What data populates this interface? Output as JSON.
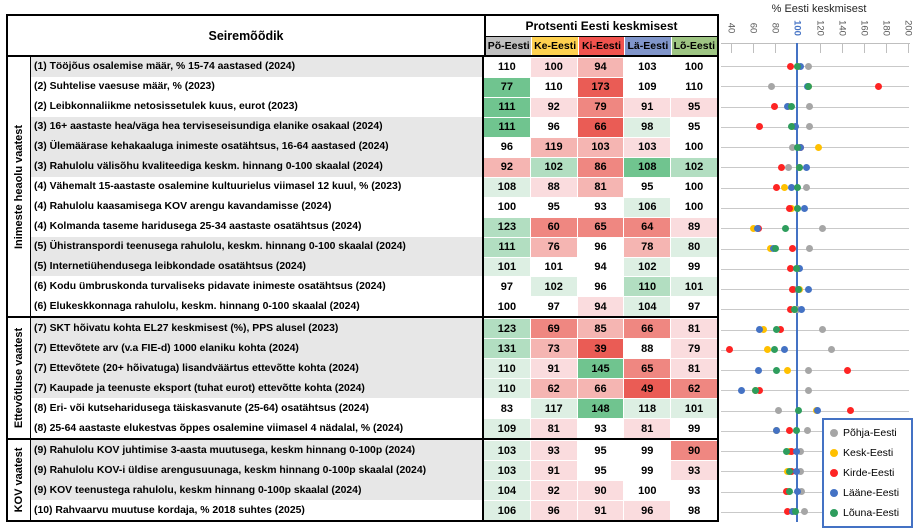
{
  "table": {
    "header": {
      "metric": "Seiremõõdik",
      "values_title": "Protsenti Eesti keskmisest"
    },
    "regions": [
      {
        "short": "Põ-Eesti",
        "header_color": "#bfbfbf"
      },
      {
        "short": "Ke-Eesti",
        "header_color": "#fed14f"
      },
      {
        "short": "Ki-Eesti",
        "header_color": "#f1534e"
      },
      {
        "short": "Lä-Eesti",
        "header_color": "#8095ca"
      },
      {
        "short": "Lõ-Eesti",
        "header_color": "#9ec583"
      }
    ],
    "tone_colors": {
      "w": "#ffffff",
      "r1": "#fadcde",
      "r2": "#f5b5b2",
      "r3": "#ef8781",
      "r4": "#ea5c55",
      "g1": "#ddefe3",
      "g2": "#b2dec1",
      "g3": "#70c48f"
    },
    "sections": [
      {
        "label": "Inimeste heaolu vaatest",
        "rows": [
          {
            "label": "(1) Tööjõus osalemise määr, % 15-74 aastased (2024)",
            "stripe": true,
            "values": [
              110,
              100,
              94,
              103,
              100
            ],
            "tones": [
              "w",
              "r1",
              "r2",
              "w",
              "w"
            ]
          },
          {
            "label": "(2) Suhtelise vaesuse määr, % (2023)",
            "stripe": false,
            "values": [
              77,
              110,
              173,
              109,
              110
            ],
            "tones": [
              "g3",
              "w",
              "r4",
              "w",
              "w"
            ]
          },
          {
            "label": "(2) Leibkonnaliikme netosissetulek kuus, eurot (2023)",
            "stripe": false,
            "values": [
              111,
              92,
              79,
              91,
              95
            ],
            "tones": [
              "g3",
              "r1",
              "r3",
              "r1",
              "r1"
            ]
          },
          {
            "label": "(3) 16+ aastaste hea/väga hea terviseseisundiga elanike osakaal (2024)",
            "stripe": true,
            "values": [
              111,
              96,
              66,
              98,
              95
            ],
            "tones": [
              "g3",
              "w",
              "r4",
              "g1",
              "w"
            ]
          },
          {
            "label": "(3) Ülemäärase kehakaaluga inimeste osatähtsus, 16-64 aastased (2024)",
            "stripe": true,
            "values": [
              96,
              119,
              103,
              103,
              100
            ],
            "tones": [
              "w",
              "r2",
              "r2",
              "r1",
              "w"
            ]
          },
          {
            "label": "(3) Rahulolu välisõhu kvaliteediga keskm. hinnang 0-100 skaalal (2024)",
            "stripe": true,
            "values": [
              92,
              102,
              86,
              108,
              102
            ],
            "tones": [
              "r2",
              "g2",
              "r3",
              "g3",
              "g2"
            ]
          },
          {
            "label": "(4) Vähemalt 15-aastaste osalemine kultuurielus viimasel 12 kuul, % (2023)",
            "stripe": false,
            "values": [
              108,
              88,
              81,
              95,
              100
            ],
            "tones": [
              "g1",
              "r1",
              "r2",
              "w",
              "w"
            ]
          },
          {
            "label": "(4) Rahulolu kaasamisega KOV arengu kavandamisse (2024)",
            "stripe": false,
            "values": [
              100,
              95,
              93,
              106,
              100
            ],
            "tones": [
              "w",
              "w",
              "w",
              "g1",
              "w"
            ]
          },
          {
            "label": "(4) Kolmanda taseme haridusega 25-34 aastaste osatähtsus (2024)",
            "stripe": false,
            "values": [
              123,
              60,
              65,
              64,
              89
            ],
            "tones": [
              "g2",
              "r3",
              "r3",
              "r3",
              "r1"
            ]
          },
          {
            "label": "(5) Ühistranspordi teenusega rahulolu, keskm. hinnang 0-100 skaalal (2024)",
            "stripe": true,
            "values": [
              111,
              76,
              96,
              78,
              80
            ],
            "tones": [
              "g2",
              "r2",
              "w",
              "r2",
              "g1"
            ]
          },
          {
            "label": "(5) Internetiühendusega leibkondade osatähtsus (2024)",
            "stripe": true,
            "values": [
              101,
              101,
              94,
              102,
              99
            ],
            "tones": [
              "g1",
              "w",
              "w",
              "g1",
              "w"
            ]
          },
          {
            "label": "(6) Kodu ümbruskonda turvaliseks pidavate inimeste osatähtsus (2024)",
            "stripe": false,
            "values": [
              97,
              102,
              96,
              110,
              101
            ],
            "tones": [
              "w",
              "g1",
              "w",
              "g2",
              "g1"
            ]
          },
          {
            "label": "(6) Elukeskkonnaga rahulolu, keskm. hinnang 0-100 skaalal (2024)",
            "stripe": false,
            "values": [
              100,
              97,
              94,
              104,
              97
            ],
            "tones": [
              "w",
              "w",
              "r1",
              "g1",
              "w"
            ]
          }
        ]
      },
      {
        "label": "Ettevõtluse vaatest",
        "rows": [
          {
            "label": "(7) SKT hõivatu kohta EL27 keskmisest (%), PPS alusel (2023)",
            "stripe": true,
            "values": [
              123,
              69,
              85,
              66,
              81
            ],
            "tones": [
              "g2",
              "r3",
              "r2",
              "r3",
              "r1"
            ]
          },
          {
            "label": "(7) Ettevõtete arv (v.a FIE-d) 1000 elaniku kohta (2024)",
            "stripe": true,
            "values": [
              131,
              73,
              39,
              88,
              79
            ],
            "tones": [
              "g2",
              "r2",
              "r4",
              "w",
              "r1"
            ]
          },
          {
            "label": "(7) Ettevõtete (20+ hõivatuga) lisandväärtus ettevõtte kohta (2024)",
            "stripe": true,
            "values": [
              110,
              91,
              145,
              65,
              81
            ],
            "tones": [
              "g1",
              "r1",
              "g3",
              "r3",
              "r1"
            ]
          },
          {
            "label": "(7) Kaupade ja teenuste eksport (tuhat eurot) ettevõtte kohta (2024)",
            "stripe": true,
            "values": [
              110,
              62,
              66,
              49,
              62
            ],
            "tones": [
              "g1",
              "r2",
              "r2",
              "r4",
              "r3"
            ]
          },
          {
            "label": "(8) Eri- või kutseharidusega täiskasvanute (25-64) osatähtsus (2024)",
            "stripe": false,
            "values": [
              83,
              117,
              148,
              118,
              101
            ],
            "tones": [
              "w",
              "g1",
              "g3",
              "g1",
              "g1"
            ]
          },
          {
            "label": "(8) 25-64 aastaste elukestvas õppes osalemine viimasel 4 nädalal, % (2024)",
            "stripe": false,
            "values": [
              109,
              81,
              93,
              81,
              99
            ],
            "tones": [
              "g1",
              "r1",
              "w",
              "r1",
              "w"
            ]
          }
        ]
      },
      {
        "label": "KOV vaatest",
        "rows": [
          {
            "label": "(9) Rahulolu KOV juhtimise 3-aasta muutusega, keskm hinnang 0-100p (2024)",
            "stripe": true,
            "values": [
              103,
              93,
              95,
              99,
              90
            ],
            "tones": [
              "g1",
              "r1",
              "w",
              "w",
              "r3"
            ]
          },
          {
            "label": "(9) Rahulolu KOV-i üldise arengusuunaga, keskm hinnang 0-100p skaalal (2024)",
            "stripe": true,
            "values": [
              103,
              91,
              95,
              99,
              93
            ],
            "tones": [
              "g1",
              "r1",
              "w",
              "w",
              "r1"
            ]
          },
          {
            "label": "(9) KOV teenustega rahulolu, keskm hinnang 0-100p skaalal (2024)",
            "stripe": true,
            "values": [
              104,
              92,
              90,
              100,
              93
            ],
            "tones": [
              "g1",
              "r1",
              "r1",
              "w",
              "w"
            ]
          },
          {
            "label": "(10) Rahvaarvu muutuse kordaja, % 2018 suhtes (2025)",
            "stripe": false,
            "values": [
              106,
              96,
              91,
              96,
              98
            ],
            "tones": [
              "g1",
              "r1",
              "r1",
              "r1",
              "w"
            ]
          }
        ]
      }
    ]
  },
  "chart_data": {
    "type": "scatter",
    "title": "% Eesti keskmisest",
    "xlabel": "",
    "xlim": [
      40,
      200
    ],
    "x_ticks": [
      40,
      60,
      80,
      100,
      120,
      140,
      160,
      180,
      200
    ],
    "reference_line": 100,
    "grid": true,
    "legend_position": "bottom-right",
    "categories": [
      "(1) Tööjõus osalemise määr, % 15-74 aastased (2024)",
      "(2) Suhtelise vaesuse määr, % (2023)",
      "(2) Leibkonnaliikme netosissetulek kuus, eurot (2023)",
      "(3) 16+ aastaste hea/väga hea terviseseisundiga elanike osakaal (2024)",
      "(3) Ülemäärase kehakaaluga inimeste osatähtsus, 16-64 aastased (2024)",
      "(3) Rahulolu välisõhu kvaliteediga keskm. hinnang 0-100 skaalal (2024)",
      "(4) Vähemalt 15-aastaste osalemine kultuurielus viimasel 12 kuul, % (2023)",
      "(4) Rahulolu kaasamisega KOV arengu kavandamisse (2024)",
      "(4) Kolmanda taseme haridusega 25-34 aastaste osatähtsus (2024)",
      "(5) Ühistranspordi teenusega rahulolu, keskm. hinnang 0-100 skaalal (2024)",
      "(5) Internetiühendusega leibkondade osatähtsus (2024)",
      "(6) Kodu ümbruskonda turvaliseks pidavate inimeste osatähtsus (2024)",
      "(6) Elukeskkonnaga rahulolu, keskm. hinnang 0-100 skaalal (2024)",
      "(7) SKT hõivatu kohta EL27 keskmisest (%), PPS alusel (2023)",
      "(7) Ettevõtete arv (v.a FIE-d) 1000 elaniku kohta (2024)",
      "(7) Ettevõtete (20+ hõivatuga) lisandväärtus ettevõtte kohta (2024)",
      "(7) Kaupade ja teenuste eksport (tuhat eurot) ettevõtte kohta (2024)",
      "(8) Eri- või kutseharidusega täiskasvanute (25-64) osatähtsus (2024)",
      "(8) 25-64 aastaste elukestvas õppes osalemine viimasel 4 nädalal, % (2024)",
      "(9) Rahulolu KOV juhtimise 3-aasta muutusega, keskm hinnang 0-100p (2024)",
      "(9) Rahulolu KOV-i üldise arengusuunaga, keskm hinnang 0-100p skaalal (2024)",
      "(9) KOV teenustega rahulolu, keskm hinnang 0-100p skaalal (2024)",
      "(10) Rahvaarvu muutuse kordaja, % 2018 suhtes (2025)"
    ],
    "series": [
      {
        "name": "Põhja-Eesti",
        "color": "#a6a6a6",
        "values": [
          110,
          77,
          111,
          111,
          96,
          92,
          108,
          100,
          123,
          111,
          101,
          97,
          100,
          123,
          131,
          110,
          110,
          83,
          109,
          103,
          103,
          104,
          106
        ]
      },
      {
        "name": "Kesk-Eesti",
        "color": "#ffc000",
        "values": [
          100,
          110,
          92,
          96,
          119,
          102,
          88,
          95,
          60,
          76,
          101,
          102,
          97,
          69,
          73,
          91,
          62,
          117,
          81,
          93,
          91,
          92,
          96
        ]
      },
      {
        "name": "Kirde-Eesti",
        "color": "#fe2423",
        "values": [
          94,
          173,
          79,
          66,
          103,
          86,
          81,
          93,
          65,
          96,
          94,
          96,
          94,
          85,
          39,
          145,
          66,
          148,
          93,
          95,
          95,
          90,
          91
        ]
      },
      {
        "name": "Lääne-Eesti",
        "color": "#4472c4",
        "values": [
          103,
          109,
          91,
          98,
          103,
          108,
          95,
          106,
          64,
          78,
          102,
          110,
          104,
          66,
          88,
          65,
          49,
          118,
          81,
          99,
          99,
          100,
          96
        ]
      },
      {
        "name": "Lõuna-Eesti",
        "color": "#2e9d5d",
        "values": [
          100,
          110,
          95,
          95,
          100,
          102,
          100,
          100,
          89,
          80,
          99,
          101,
          97,
          81,
          79,
          81,
          62,
          101,
          99,
          90,
          93,
          93,
          98
        ]
      }
    ]
  }
}
